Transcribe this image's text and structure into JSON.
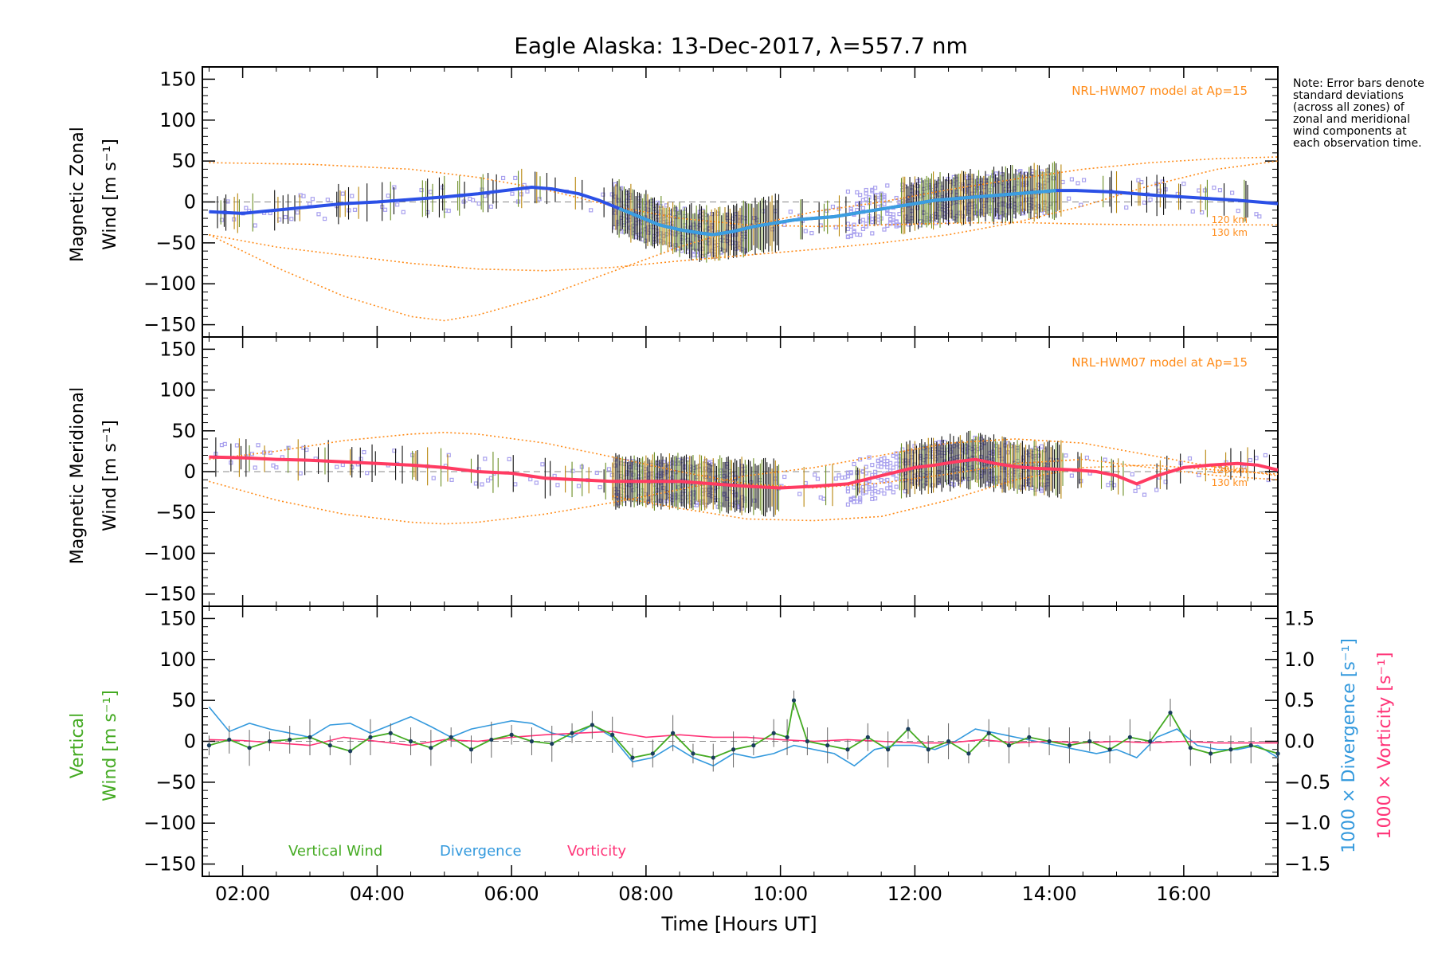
{
  "title": "Eagle Alaska: 13-Dec-2017, λ=557.7 nm",
  "note": "Note: Error bars denote standard deviations (across all zones) of zonal and meridional wind components at each observation time.",
  "colors": {
    "zonal": "#2b50e6",
    "zonal_light": "#3b9ee0",
    "meridional": "#ff3b62",
    "vertical": "#44aa22",
    "divergence": "#3399dd",
    "vorticity": "#ff3377",
    "model": "#ff8c1a",
    "zone_points": "#a9a1ee"
  },
  "chart_data": [
    {
      "type": "line",
      "panel": "zonal",
      "ylabel_line1": "Magnetic Zonal",
      "ylabel_line2": "Wind [m s⁻¹]",
      "ylim": [
        -165,
        165
      ],
      "yticks": [
        150,
        100,
        50,
        0,
        -50,
        -100,
        -150
      ],
      "model_label": "NRL-HWM07 model at Ap=15",
      "model_height_labels": [
        "120 km",
        "130 km"
      ],
      "model_curves": [
        {
          "x": [
            1.5,
            3,
            4.5,
            5.5,
            6.5,
            7.5,
            8.5,
            9.5,
            10.5,
            11.5,
            12.5,
            13.5,
            14.5,
            15.5,
            16.5,
            17.4
          ],
          "y": [
            48,
            46,
            40,
            30,
            15,
            -5,
            -20,
            -28,
            -30,
            -28,
            -26,
            -25,
            -27,
            -28,
            -28,
            -28
          ]
        },
        {
          "x": [
            1.5,
            2.5,
            3.5,
            4.5,
            5.5,
            6.5,
            7.5,
            8.5,
            9.5,
            10.5,
            11.5,
            12.5,
            13.5,
            14.5,
            15.5,
            16.5,
            17.4
          ],
          "y": [
            -40,
            -55,
            -65,
            -75,
            -82,
            -84,
            -80,
            -72,
            -65,
            -58,
            -50,
            -40,
            -25,
            -5,
            20,
            40,
            50
          ]
        },
        {
          "x": [
            1.5,
            2.5,
            3.5,
            4.5,
            5.0,
            5.5,
            6.5,
            7.5,
            8.5,
            9.5,
            10.5,
            11.5,
            12.5,
            13.5,
            14.5,
            15.5,
            16.5,
            17.4
          ],
          "y": [
            -40,
            -80,
            -115,
            -140,
            -145,
            -138,
            -115,
            -85,
            -55,
            -30,
            -12,
            0,
            15,
            28,
            40,
            48,
            53,
            55
          ]
        }
      ],
      "series": [
        {
          "name": "zonal-wind",
          "x": [
            1.5,
            2.0,
            2.5,
            3.0,
            3.5,
            4.0,
            4.5,
            5.0,
            5.5,
            6.0,
            6.3,
            6.6,
            7.0,
            7.3,
            7.6,
            7.9,
            8.2,
            8.5,
            8.8,
            9.0,
            9.3,
            9.6,
            9.9,
            10.2,
            10.5,
            10.8,
            11.1,
            11.4,
            11.7,
            12.0,
            12.3,
            12.6,
            12.9,
            13.2,
            13.5,
            13.8,
            14.1,
            14.4,
            14.7,
            15.0,
            15.3,
            15.6,
            16.0,
            16.4,
            16.8,
            17.1,
            17.4
          ],
          "y": [
            -12,
            -14,
            -10,
            -6,
            -2,
            0,
            3,
            6,
            10,
            15,
            18,
            16,
            10,
            2,
            -8,
            -18,
            -28,
            -34,
            -38,
            -40,
            -36,
            -30,
            -26,
            -22,
            -20,
            -18,
            -14,
            -10,
            -6,
            -2,
            2,
            4,
            6,
            8,
            10,
            12,
            14,
            14,
            13,
            12,
            10,
            8,
            6,
            4,
            2,
            0,
            -2
          ]
        }
      ]
    },
    {
      "type": "line",
      "panel": "meridional",
      "ylabel_line1": "Magnetic Meridional",
      "ylabel_line2": "Wind [m s⁻¹]",
      "ylim": [
        -165,
        165
      ],
      "yticks": [
        150,
        100,
        50,
        0,
        -50,
        -100,
        -150
      ],
      "model_label": "NRL-HWM07 model at Ap=15",
      "model_height_labels": [
        "120 km",
        "130 km"
      ],
      "model_curves": [
        {
          "x": [
            1.5,
            2.5,
            3.5,
            4.5,
            5.0,
            5.5,
            6.5,
            7.5,
            8.5,
            9.5,
            10.5,
            11.5,
            12.5,
            13.5,
            14.5,
            15.5,
            16.5,
            17.4
          ],
          "y": [
            15,
            25,
            38,
            46,
            48,
            46,
            35,
            18,
            0,
            -15,
            -20,
            -14,
            -3,
            10,
            15,
            5,
            -5,
            -10
          ]
        },
        {
          "x": [
            1.5,
            2.5,
            3.5,
            4.5,
            5.0,
            5.5,
            6.5,
            7.5,
            8.5,
            9.5,
            10.5,
            11.5,
            12.5,
            13.5,
            14.5,
            15.5,
            16.5,
            17.4
          ],
          "y": [
            -12,
            -35,
            -52,
            -62,
            -64,
            -62,
            -52,
            -38,
            -22,
            -5,
            5,
            20,
            35,
            40,
            35,
            20,
            5,
            -5
          ]
        },
        {
          "x": [
            7.5,
            8.5,
            9.5,
            10.5,
            11.5,
            12.5,
            13.5,
            14.5,
            15.5,
            16.5,
            17.4
          ],
          "y": [
            -30,
            -45,
            -58,
            -60,
            -55,
            -35,
            -10,
            5,
            8,
            2,
            -3
          ]
        }
      ],
      "series": [
        {
          "name": "meridional-wind",
          "x": [
            1.5,
            2.0,
            2.5,
            3.0,
            3.5,
            4.0,
            4.5,
            5.0,
            5.5,
            6.0,
            6.5,
            7.0,
            7.5,
            8.0,
            8.5,
            9.0,
            9.5,
            10.0,
            10.5,
            11.0,
            11.5,
            12.0,
            12.3,
            12.6,
            12.9,
            13.2,
            13.5,
            13.8,
            14.1,
            14.4,
            14.7,
            15.0,
            15.3,
            15.6,
            16.0,
            16.4,
            16.8,
            17.1,
            17.4
          ],
          "y": [
            18,
            17,
            15,
            14,
            12,
            10,
            8,
            5,
            0,
            -2,
            -8,
            -10,
            -12,
            -12,
            -12,
            -15,
            -18,
            -20,
            -18,
            -15,
            -5,
            5,
            8,
            12,
            15,
            10,
            6,
            4,
            3,
            2,
            0,
            -5,
            -15,
            -5,
            5,
            8,
            10,
            8,
            2
          ]
        }
      ]
    },
    {
      "type": "line",
      "panel": "vertical",
      "ylabel_line1": "Vertical",
      "ylabel_line2": "Wind [m s⁻¹]",
      "right_label_div": "1000 × Divergence [s⁻¹]",
      "right_label_vor": "1000 × Vorticity [s⁻¹]",
      "ylim": [
        -165,
        165
      ],
      "yticks": [
        150,
        100,
        50,
        0,
        -50,
        -100,
        -150
      ],
      "y2lim": [
        -1.65,
        1.65
      ],
      "y2ticks": [
        1.5,
        1.0,
        0.5,
        0.0,
        -0.5,
        -1.0,
        -1.5
      ],
      "y2ticklabels": [
        "1.5",
        "1.0",
        "0.5",
        "0.0",
        "−0.5",
        "−1.0",
        "−1.5"
      ],
      "legend": [
        "Vertical Wind",
        "Divergence",
        "Vorticity"
      ],
      "series": [
        {
          "name": "Vertical Wind",
          "x": [
            1.5,
            1.8,
            2.1,
            2.4,
            2.7,
            3.0,
            3.3,
            3.6,
            3.9,
            4.2,
            4.5,
            4.8,
            5.1,
            5.4,
            5.7,
            6.0,
            6.3,
            6.6,
            6.9,
            7.2,
            7.5,
            7.8,
            8.1,
            8.4,
            8.7,
            9.0,
            9.3,
            9.6,
            9.9,
            10.1,
            10.2,
            10.4,
            10.7,
            11.0,
            11.3,
            11.6,
            11.9,
            12.2,
            12.5,
            12.8,
            13.1,
            13.4,
            13.7,
            14.0,
            14.3,
            14.6,
            14.9,
            15.2,
            15.5,
            15.8,
            16.1,
            16.4,
            16.7,
            17.0,
            17.4
          ],
          "y": [
            -5,
            2,
            -8,
            0,
            2,
            5,
            -5,
            -12,
            5,
            10,
            0,
            -8,
            5,
            -10,
            2,
            8,
            0,
            -3,
            10,
            20,
            8,
            -20,
            -15,
            10,
            -15,
            -20,
            -10,
            -5,
            10,
            5,
            50,
            0,
            -5,
            -10,
            5,
            -10,
            15,
            -10,
            0,
            -15,
            10,
            -5,
            5,
            0,
            -5,
            0,
            -10,
            5,
            0,
            35,
            -8,
            -15,
            -10,
            -5,
            -15
          ]
        },
        {
          "name": "Divergence",
          "x": [
            1.5,
            1.8,
            2.1,
            2.4,
            2.7,
            3.0,
            3.3,
            3.6,
            3.9,
            4.2,
            4.5,
            4.8,
            5.1,
            5.4,
            5.7,
            6.0,
            6.3,
            6.6,
            6.9,
            7.2,
            7.5,
            7.8,
            8.1,
            8.4,
            8.7,
            9.0,
            9.3,
            9.6,
            9.9,
            10.2,
            10.5,
            10.8,
            11.1,
            11.4,
            11.7,
            12.0,
            12.3,
            12.6,
            12.9,
            13.2,
            13.5,
            13.8,
            14.1,
            14.4,
            14.7,
            15.0,
            15.3,
            15.6,
            15.9,
            16.2,
            16.5,
            16.8,
            17.1,
            17.4
          ],
          "y": [
            0.42,
            0.12,
            0.22,
            0.15,
            0.1,
            0.05,
            0.2,
            0.22,
            0.1,
            0.2,
            0.3,
            0.18,
            0.05,
            0.15,
            0.2,
            0.25,
            0.22,
            0.1,
            0.05,
            0.2,
            0.05,
            -0.25,
            -0.2,
            -0.05,
            -0.2,
            -0.3,
            -0.15,
            -0.2,
            -0.15,
            -0.05,
            -0.1,
            -0.15,
            -0.3,
            -0.1,
            -0.05,
            -0.05,
            -0.1,
            0.0,
            0.15,
            0.1,
            0.05,
            0.0,
            -0.05,
            -0.1,
            -0.15,
            -0.1,
            -0.2,
            0.05,
            0.15,
            -0.05,
            -0.1,
            -0.1,
            -0.05,
            -0.2
          ]
        },
        {
          "name": "Vorticity",
          "x": [
            1.5,
            2.0,
            2.5,
            3.0,
            3.5,
            4.0,
            4.5,
            5.0,
            5.5,
            6.0,
            6.5,
            7.0,
            7.5,
            8.0,
            8.5,
            9.0,
            9.5,
            10.0,
            10.5,
            11.0,
            11.5,
            12.0,
            12.5,
            13.0,
            13.5,
            14.0,
            14.5,
            15.0,
            15.5,
            16.0,
            16.5,
            17.0,
            17.4
          ],
          "y": [
            0.02,
            0.01,
            -0.02,
            -0.05,
            0.05,
            0.0,
            -0.05,
            0.02,
            0.0,
            0.05,
            0.08,
            0.1,
            0.12,
            0.05,
            0.08,
            0.05,
            0.05,
            0.02,
            0.0,
            0.02,
            0.0,
            -0.02,
            -0.02,
            0.02,
            -0.02,
            0.0,
            -0.02,
            0.0,
            -0.02,
            0.0,
            -0.02,
            -0.02,
            -0.02
          ]
        }
      ]
    }
  ],
  "x_axis": {
    "label": "Time [Hours UT]",
    "xlim": [
      1.4,
      17.4
    ],
    "ticks": [
      2,
      4,
      6,
      8,
      10,
      12,
      14,
      16
    ],
    "ticklabels": [
      "02:00",
      "04:00",
      "06:00",
      "08:00",
      "10:00",
      "12:00",
      "14:00",
      "16:00"
    ]
  }
}
